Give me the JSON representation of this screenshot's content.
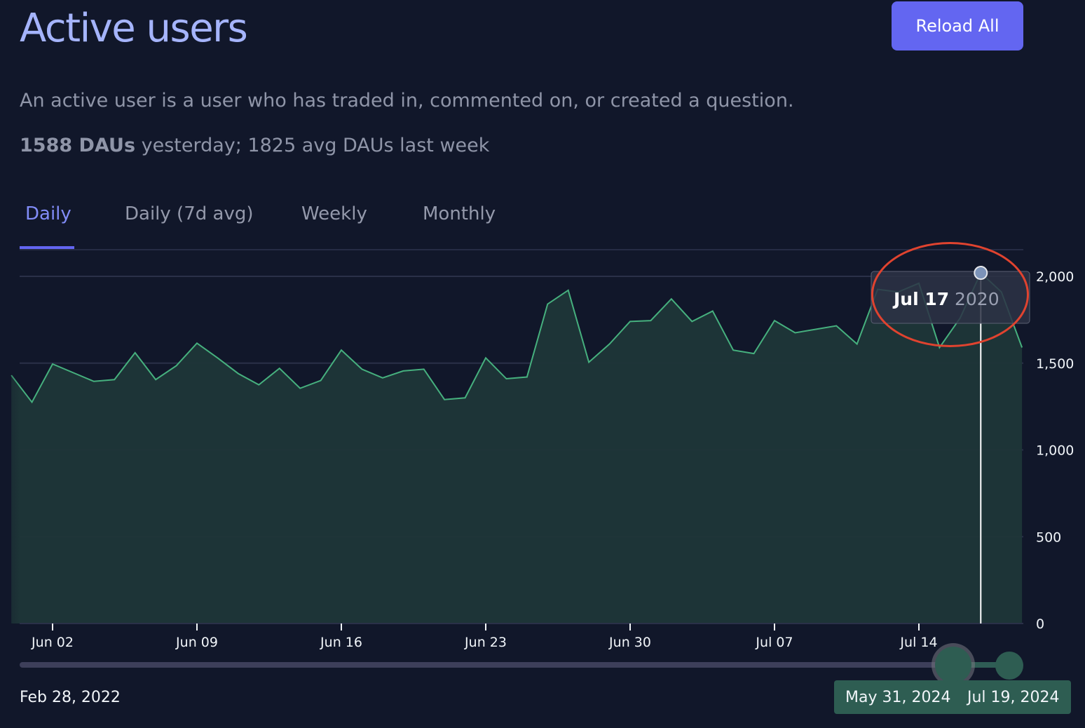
{
  "header": {
    "title": "Active users",
    "reload_label": "Reload All",
    "description": "An active user is a user who has traded in, commented on, or created a question.",
    "stats_bold": "1588 DAUs",
    "stats_rest": " yesterday; 1825 avg DAUs last week"
  },
  "tabs": [
    {
      "label": "Daily",
      "active": true
    },
    {
      "label": "Daily (7d avg)",
      "active": false
    },
    {
      "label": "Weekly",
      "active": false
    },
    {
      "label": "Monthly",
      "active": false
    }
  ],
  "tooltip": {
    "date": "Jul 17",
    "value": "2020"
  },
  "range": {
    "min_date": "Feb 28, 2022",
    "start": "May 31, 2024",
    "end": "Jul 19, 2024"
  },
  "colors": {
    "background": "#11172a",
    "line": "#4ade80",
    "area": "#1f3638",
    "accent": "#6366f1",
    "highlight": "#e0432f"
  },
  "chart_data": {
    "type": "area",
    "xlabel": "",
    "ylabel": "",
    "x_start": "2024-05-31",
    "x_end": "2024-07-19",
    "x": [
      "2024-05-31",
      "2024-06-01",
      "2024-06-02",
      "2024-06-03",
      "2024-06-04",
      "2024-06-05",
      "2024-06-06",
      "2024-06-07",
      "2024-06-08",
      "2024-06-09",
      "2024-06-10",
      "2024-06-11",
      "2024-06-12",
      "2024-06-13",
      "2024-06-14",
      "2024-06-15",
      "2024-06-16",
      "2024-06-17",
      "2024-06-18",
      "2024-06-19",
      "2024-06-20",
      "2024-06-21",
      "2024-06-22",
      "2024-06-23",
      "2024-06-24",
      "2024-06-25",
      "2024-06-26",
      "2024-06-27",
      "2024-06-28",
      "2024-06-29",
      "2024-06-30",
      "2024-07-01",
      "2024-07-02",
      "2024-07-03",
      "2024-07-04",
      "2024-07-05",
      "2024-07-06",
      "2024-07-07",
      "2024-07-08",
      "2024-07-09",
      "2024-07-10",
      "2024-07-11",
      "2024-07-12",
      "2024-07-13",
      "2024-07-14",
      "2024-07-15",
      "2024-07-16",
      "2024-07-17",
      "2024-07-18",
      "2024-07-19"
    ],
    "values": [
      1430,
      1275,
      1495,
      1445,
      1395,
      1405,
      1560,
      1405,
      1485,
      1615,
      1530,
      1440,
      1375,
      1470,
      1355,
      1400,
      1575,
      1465,
      1415,
      1455,
      1465,
      1290,
      1300,
      1530,
      1410,
      1420,
      1840,
      1920,
      1505,
      1610,
      1740,
      1745,
      1870,
      1740,
      1800,
      1575,
      1555,
      1745,
      1675,
      1695,
      1715,
      1610,
      1925,
      1910,
      1960,
      1590,
      1760,
      2020,
      1910,
      1590
    ],
    "x_ticks": [
      {
        "date": "2024-06-02",
        "label": "Jun 02"
      },
      {
        "date": "2024-06-09",
        "label": "Jun 09"
      },
      {
        "date": "2024-06-16",
        "label": "Jun 16"
      },
      {
        "date": "2024-06-23",
        "label": "Jun 23"
      },
      {
        "date": "2024-06-30",
        "label": "Jun 30"
      },
      {
        "date": "2024-07-07",
        "label": "Jul 07"
      },
      {
        "date": "2024-07-14",
        "label": "Jul 14"
      }
    ],
    "y_ticks": [
      {
        "value": 0,
        "label": "0"
      },
      {
        "value": 500,
        "label": "500"
      },
      {
        "value": 1000,
        "label": "1,000"
      },
      {
        "value": 1500,
        "label": "1,500"
      },
      {
        "value": 2000,
        "label": "2,000"
      }
    ],
    "ylim": [
      0,
      2000
    ],
    "grid": true,
    "highlighted_point": {
      "date": "2024-07-17",
      "value": 2020
    }
  }
}
